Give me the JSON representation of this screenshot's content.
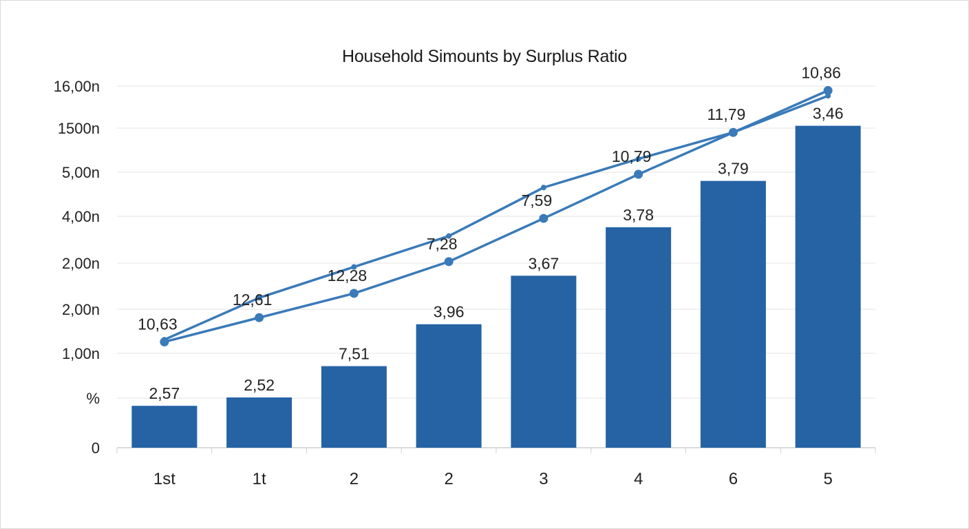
{
  "chart_data": {
    "type": "bar",
    "title": "Household Simounts by Surplus Ratio",
    "categories": [
      "1st",
      "1t",
      "2",
      "2",
      "3",
      "4",
      "6",
      "5"
    ],
    "y_tick_labels": [
      "0",
      "%",
      "1,00n",
      "2,00n",
      "2,00n",
      "4,00n",
      "5,00n",
      "1500n",
      "16,00n"
    ],
    "bars": {
      "values": [
        0.95,
        1.14,
        1.85,
        2.8,
        3.9,
        5.0,
        6.05,
        7.3
      ],
      "labels": [
        "2,57",
        "2,52",
        "7,51",
        "3,96",
        "3,67",
        "3,78",
        "3,79",
        "3,46"
      ]
    },
    "series": [
      {
        "values": [
          2.4,
          2.95,
          3.5,
          4.22,
          5.2,
          6.2,
          7.15,
          8.1
        ],
        "labels": [
          "10,63",
          "12,61",
          "12,28",
          "7,28",
          "7,59",
          "10,79",
          "11,79",
          "10,86"
        ]
      },
      {
        "values": [
          2.45,
          3.4,
          4.1,
          4.8,
          5.9,
          6.55,
          7.15,
          7.98
        ],
        "labels": []
      }
    ],
    "ylim": [
      0,
      8.2
    ],
    "grid": true,
    "colors": {
      "bar": "#2563a4",
      "line": "#3a7ab8"
    }
  }
}
